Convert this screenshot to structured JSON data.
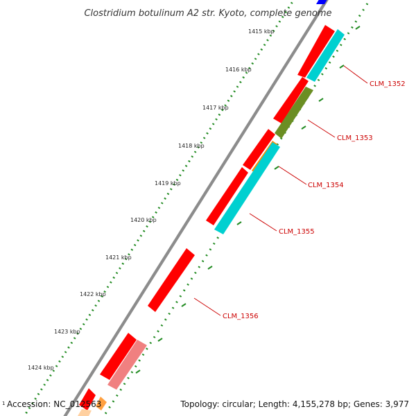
{
  "title": "Clostridium botulinum A2 str. Kyoto, complete genome",
  "accession_label": "Accession: NC_012563",
  "summary_label": "Topology: circular; Length: 4,155,278 bp; Genes: 3,977",
  "corner_mark": "1",
  "ruler": {
    "ticks": [
      {
        "label": "1415 kbp"
      },
      {
        "label": "1416 kbp"
      },
      {
        "label": "1417 kbp"
      },
      {
        "label": "1418 kbp"
      },
      {
        "label": "1419 kbp"
      },
      {
        "label": "1420 kbp"
      },
      {
        "label": "1421 kbp"
      },
      {
        "label": "1422 kbp"
      },
      {
        "label": "1423 kbp"
      },
      {
        "label": "1424 kbp"
      }
    ]
  },
  "genes": [
    {
      "label": "CLM_1352"
    },
    {
      "label": "CLM_1353"
    },
    {
      "label": "CLM_1354"
    },
    {
      "label": "CLM_1355"
    },
    {
      "label": "CLM_1356"
    }
  ],
  "colors": {
    "forward_cds": "#ff0000",
    "forward_cds_light": "#f08080",
    "reverse_cds": "#00d0d0",
    "olive_feature": "#6b8e23",
    "orange_feature": "#ff8c00",
    "backbone": "#8c8c8c",
    "dots": "#228b22",
    "label": "#cc0000"
  }
}
